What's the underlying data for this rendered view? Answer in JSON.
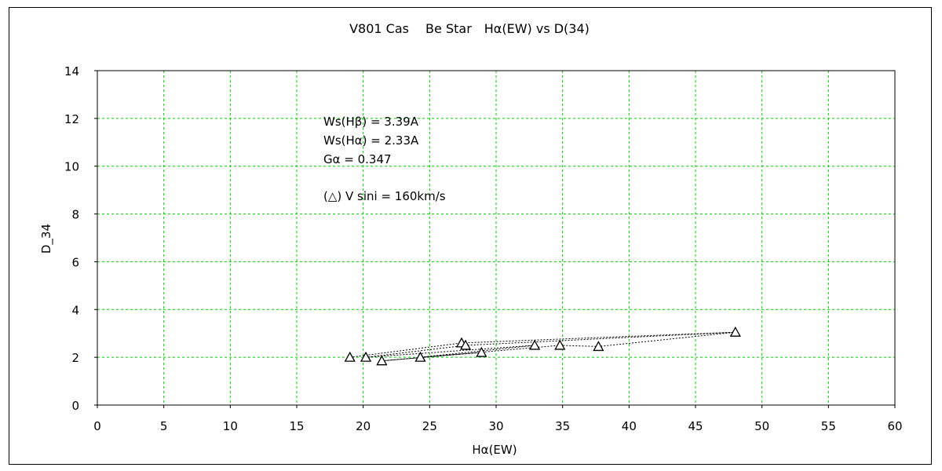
{
  "chart_data": {
    "type": "scatter",
    "title": "V801 Cas　 Be Star　Hα(EW) vs D(34)",
    "xlabel": "Hα(EW)",
    "ylabel": "D_34",
    "xlim": [
      0,
      60
    ],
    "ylim": [
      0,
      14
    ],
    "x_ticks": [
      "0",
      "5",
      "10",
      "15",
      "20",
      "25",
      "30",
      "35",
      "40",
      "45",
      "50",
      "55",
      "60"
    ],
    "y_ticks": [
      "0",
      "2",
      "4",
      "6",
      "8",
      "10",
      "12",
      "14"
    ],
    "grid": true,
    "grid_color": "#00cc00",
    "annotations": [
      "Ws(Hβ) = 3.39A",
      "Ws(Hα) = 2.33A",
      "Gα = 0.347",
      "(△) V sini = 160km/s"
    ],
    "marker": "triangle",
    "series": [
      {
        "points": [
          {
            "x": 19.0,
            "y": 2.0
          },
          {
            "x": 20.2,
            "y": 2.0
          },
          {
            "x": 21.4,
            "y": 1.85
          },
          {
            "x": 24.3,
            "y": 2.0
          },
          {
            "x": 27.4,
            "y": 2.6
          },
          {
            "x": 27.7,
            "y": 2.5
          },
          {
            "x": 28.9,
            "y": 2.2
          },
          {
            "x": 32.9,
            "y": 2.5
          },
          {
            "x": 34.8,
            "y": 2.5
          },
          {
            "x": 37.7,
            "y": 2.45
          },
          {
            "x": 48.0,
            "y": 3.05
          }
        ],
        "line_order": [
          {
            "x": 19.0,
            "y": 2.0
          },
          {
            "x": 27.4,
            "y": 2.6
          },
          {
            "x": 48.0,
            "y": 3.05
          },
          {
            "x": 27.7,
            "y": 2.5
          },
          {
            "x": 20.2,
            "y": 2.0
          },
          {
            "x": 32.9,
            "y": 2.5
          },
          {
            "x": 24.3,
            "y": 2.0
          },
          {
            "x": 28.9,
            "y": 2.2
          },
          {
            "x": 21.4,
            "y": 1.85
          },
          {
            "x": 34.8,
            "y": 2.5
          },
          {
            "x": 37.7,
            "y": 2.45
          },
          {
            "x": 48.0,
            "y": 3.05
          }
        ]
      }
    ]
  }
}
